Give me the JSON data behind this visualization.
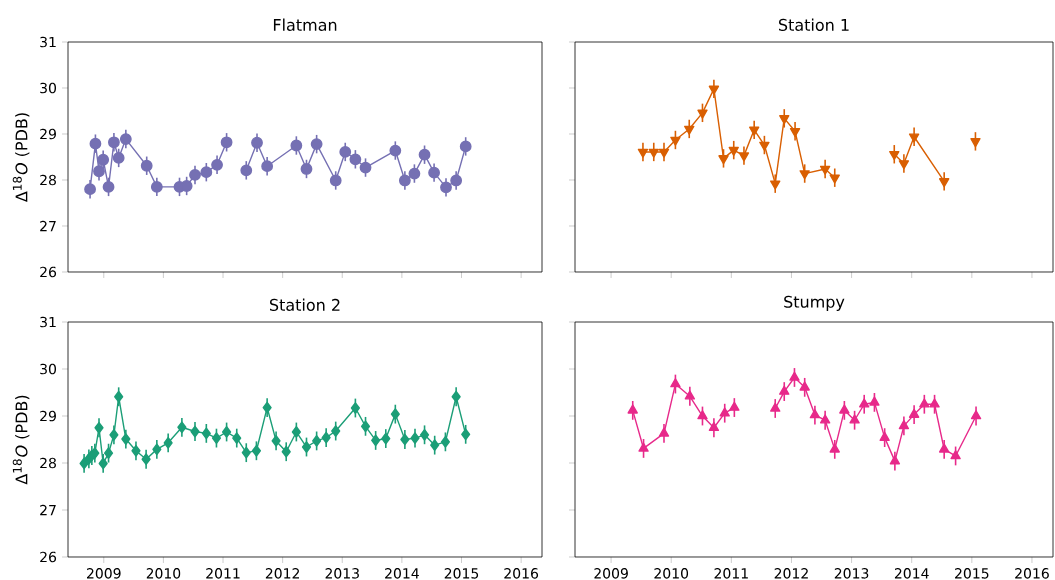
{
  "chart_data": [
    {
      "type": "line",
      "title": "Flatman",
      "ylabel": "Δ$^{18}$*O* (PDB)",
      "xlim": [
        2008.4,
        2016.35
      ],
      "ylim": [
        26,
        31
      ],
      "xticks": [
        2009,
        2010,
        2011,
        2012,
        2013,
        2014,
        2015,
        2016
      ],
      "yticks": [
        26,
        27,
        28,
        29,
        30,
        31
      ],
      "tick_labels": "y",
      "marker": "circle",
      "grid": false,
      "series": [
        {
          "color": "#7570b3",
          "x": [
            2008.77,
            2008.86,
            2008.92,
            2008.99,
            2009.08,
            2009.17,
            2009.25,
            2009.37,
            2009.72,
            2009.89,
            2010.27,
            2010.39,
            2010.53,
            2010.72,
            2010.9,
            2011.06,
            null,
            2011.39,
            2011.57,
            2011.74,
            2012.23,
            2012.4,
            2012.57,
            2012.89,
            2013.05,
            2013.22,
            2013.39,
            2013.89,
            2014.05,
            2014.21,
            2014.38,
            2014.54,
            2014.74,
            2014.91,
            2015.07
          ],
          "values": [
            27.8,
            28.79,
            28.19,
            28.44,
            27.85,
            28.82,
            28.48,
            28.89,
            28.31,
            27.85,
            27.85,
            27.87,
            28.11,
            28.17,
            28.33,
            28.82,
            null,
            28.21,
            28.81,
            28.3,
            28.75,
            28.24,
            28.78,
            27.99,
            28.61,
            28.45,
            28.27,
            28.64,
            27.99,
            28.14,
            28.55,
            28.16,
            27.84,
            27.99,
            28.73
          ],
          "errors": [
            0.2,
            0.2,
            0.2,
            0.2,
            0.2,
            0.2,
            0.2,
            0.2,
            0.2,
            0.2,
            0.2,
            0.2,
            0.2,
            0.2,
            0.2,
            0.2,
            null,
            0.2,
            0.2,
            0.2,
            0.2,
            0.2,
            0.2,
            0.2,
            0.2,
            0.2,
            0.2,
            0.2,
            0.2,
            0.2,
            0.2,
            0.2,
            0.2,
            0.2,
            0.2
          ]
        }
      ]
    },
    {
      "type": "line",
      "title": "Station 1",
      "xlim": [
        2008.4,
        2016.35
      ],
      "ylim": [
        26,
        31
      ],
      "xticks": [
        2009,
        2010,
        2011,
        2012,
        2013,
        2014,
        2015,
        2016
      ],
      "yticks": [
        26,
        27,
        28,
        29,
        30,
        31
      ],
      "tick_labels": false,
      "marker": "triangle-down",
      "grid": false,
      "series": [
        {
          "color": "#d95f02",
          "x": [
            2009.53,
            2009.71,
            2009.88,
            2010.07,
            2010.3,
            2010.52,
            2010.71,
            2010.87,
            2011.04,
            2011.21,
            2011.38,
            2011.55,
            2011.73,
            2011.88,
            2012.06,
            2012.22,
            2012.56,
            2012.72,
            null,
            2013.71,
            2013.87,
            2014.04,
            2014.54,
            null,
            2015.06
          ],
          "values": [
            28.61,
            28.61,
            28.61,
            28.87,
            29.11,
            29.46,
            29.98,
            28.47,
            28.65,
            28.53,
            29.09,
            28.76,
            27.92,
            29.34,
            29.06,
            28.14,
            28.24,
            28.05,
            null,
            28.56,
            28.36,
            28.94,
            27.97,
            null,
            28.84
          ],
          "errors": [
            0.2,
            0.2,
            0.2,
            0.2,
            0.2,
            0.2,
            0.2,
            0.2,
            0.2,
            0.2,
            0.2,
            0.2,
            0.2,
            0.2,
            0.2,
            0.2,
            0.2,
            0.2,
            null,
            0.2,
            0.2,
            0.2,
            0.2,
            null,
            0.2
          ]
        }
      ]
    },
    {
      "type": "line",
      "title": "Station 2",
      "ylabel": "Δ$^{18}$*O* (PDB)",
      "xlim": [
        2008.4,
        2016.35
      ],
      "ylim": [
        26,
        31
      ],
      "xticks": [
        2009,
        2010,
        2011,
        2012,
        2013,
        2014,
        2015,
        2016
      ],
      "yticks": [
        26,
        27,
        28,
        29,
        30,
        31
      ],
      "marker": "diamond",
      "grid": false,
      "series": [
        {
          "color": "#1b9e77",
          "x": [
            2008.67,
            2008.75,
            2008.8,
            2008.85,
            2008.92,
            2008.99,
            2009.08,
            2009.17,
            2009.25,
            2009.37,
            2009.54,
            2009.71,
            2009.89,
            2010.08,
            2010.31,
            2010.53,
            2010.72,
            2010.89,
            2011.06,
            2011.23,
            2011.39,
            2011.56,
            2011.74,
            2011.89,
            2012.06,
            2012.23,
            2012.4,
            2012.57,
            2012.73,
            2012.89,
            2013.22,
            2013.39,
            2013.56,
            2013.73,
            2013.89,
            2014.05,
            2014.22,
            2014.38,
            2014.55,
            2014.73,
            2014.91,
            2015.07
          ],
          "values": [
            27.99,
            28.09,
            28.16,
            28.21,
            28.75,
            27.99,
            28.21,
            28.6,
            29.41,
            28.51,
            28.26,
            28.08,
            28.29,
            28.43,
            28.76,
            28.67,
            28.63,
            28.53,
            28.66,
            28.53,
            28.22,
            28.26,
            29.18,
            28.47,
            28.24,
            28.66,
            28.34,
            28.47,
            28.54,
            28.68,
            29.17,
            28.78,
            28.48,
            28.52,
            29.04,
            28.5,
            28.53,
            28.6,
            28.38,
            28.45,
            29.41,
            28.61
          ],
          "errors": [
            0.2,
            0.2,
            0.2,
            0.2,
            0.2,
            0.2,
            0.2,
            0.2,
            0.2,
            0.2,
            0.2,
            0.2,
            0.2,
            0.2,
            0.2,
            0.2,
            0.2,
            0.2,
            0.2,
            0.2,
            0.2,
            0.2,
            0.2,
            0.2,
            0.2,
            0.2,
            0.2,
            0.2,
            0.2,
            0.2,
            0.2,
            0.2,
            0.2,
            0.2,
            0.2,
            0.2,
            0.2,
            0.2,
            0.2,
            0.2,
            0.2,
            0.2
          ]
        }
      ]
    },
    {
      "type": "line",
      "title": "Stumpy",
      "xlim": [
        2008.4,
        2016.35
      ],
      "ylim": [
        26,
        31
      ],
      "xticks": [
        2009,
        2010,
        2011,
        2012,
        2013,
        2014,
        2015,
        2016
      ],
      "yticks": [
        26,
        27,
        28,
        29,
        30,
        31
      ],
      "tick_labels": "x",
      "marker": "triangle",
      "grid": false,
      "series": [
        {
          "color": "#e7298a",
          "x": [
            2009.36,
            2009.54,
            2009.88,
            2010.07,
            2010.31,
            2010.52,
            2010.71,
            2010.89,
            2011.05,
            null,
            2011.73,
            2011.88,
            2012.05,
            2012.22,
            2012.39,
            2012.56,
            2012.72,
            2012.88,
            2013.05,
            2013.21,
            2013.38,
            2013.55,
            2013.72,
            2013.87,
            2014.04,
            2014.21,
            2014.38,
            2014.54,
            2014.73,
            2015.07
          ],
          "values": [
            29.12,
            28.31,
            28.63,
            29.68,
            29.42,
            29.0,
            28.75,
            29.06,
            29.18,
            null,
            29.16,
            29.52,
            29.82,
            29.61,
            29.02,
            28.91,
            28.29,
            29.12,
            28.91,
            29.25,
            29.29,
            28.54,
            28.04,
            28.79,
            29.03,
            29.25,
            29.25,
            28.29,
            28.15,
            29.0
          ],
          "errors": [
            0.2,
            0.2,
            0.2,
            0.2,
            0.2,
            0.2,
            0.2,
            0.2,
            0.2,
            null,
            0.2,
            0.2,
            0.2,
            0.2,
            0.2,
            0.2,
            0.2,
            0.2,
            0.2,
            0.2,
            0.2,
            0.2,
            0.2,
            0.2,
            0.2,
            0.2,
            0.2,
            0.2,
            0.2,
            0.2
          ]
        }
      ]
    }
  ]
}
